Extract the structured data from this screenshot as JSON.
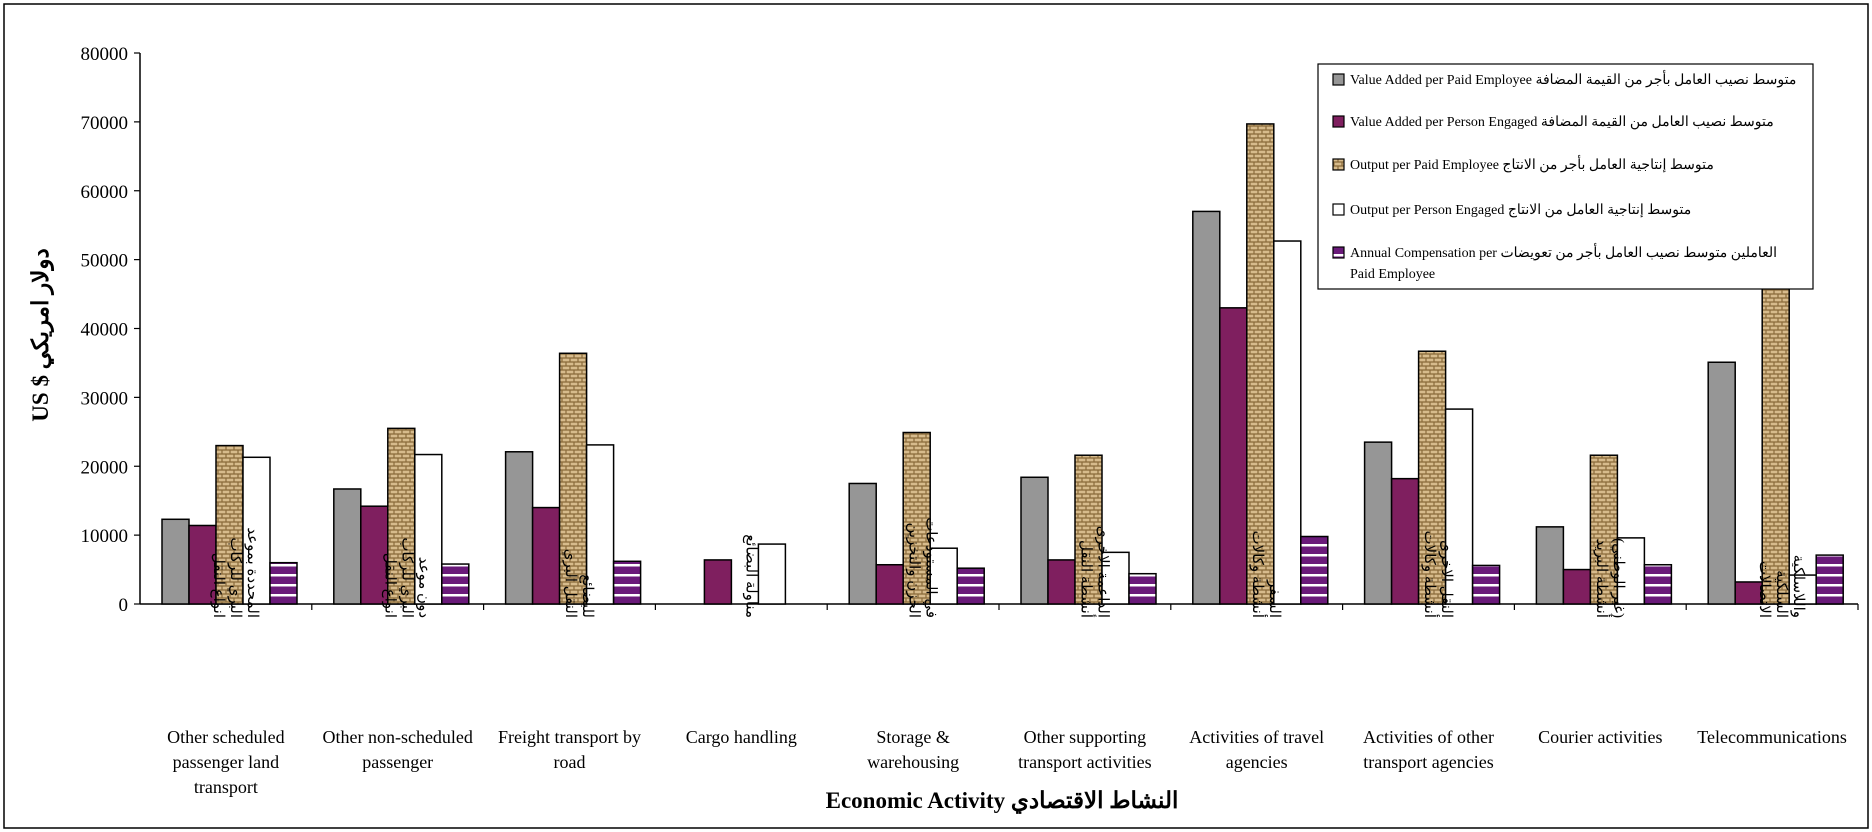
{
  "chart_data": {
    "type": "bar",
    "title": "",
    "xlabel": "Economic Activity النشاط الاقتصادي",
    "ylabel": "US $ دولار امريكي",
    "ylim": [
      0,
      80000
    ],
    "y_ticks": [
      0,
      10000,
      20000,
      30000,
      40000,
      50000,
      60000,
      70000,
      80000
    ],
    "grid": false,
    "legend_position": "top-right",
    "categories": [
      {
        "en": [
          "Other scheduled",
          "passenger land",
          "transport"
        ],
        "ar": [
          "انواع النقل",
          "البري للركاب",
          "المحددة بموعد"
        ]
      },
      {
        "en": [
          "Other non-scheduled",
          "passenger"
        ],
        "ar": [
          "انواع النقل",
          "البري للركاب",
          "دون موعد"
        ]
      },
      {
        "en": [
          "Freight transport by",
          "road"
        ],
        "ar": [
          "النقل البري",
          "للبضائع"
        ]
      },
      {
        "en": [
          "Cargo handling"
        ],
        "ar": [
          "مناولة البضائع"
        ]
      },
      {
        "en": [
          "Storage &",
          "warehousing"
        ],
        "ar": [
          "الخزن والتخزين",
          "في المستودعات"
        ]
      },
      {
        "en": [
          "Other supporting",
          "transport activities"
        ],
        "ar": [
          "أنشطة النقل",
          "الداعمة الاخرى"
        ]
      },
      {
        "en": [
          "Activities of travel",
          "agencies"
        ],
        "ar": [
          "أنشطة وكالات",
          "السفر"
        ]
      },
      {
        "en": [
          "Activities of other",
          "transport agencies"
        ],
        "ar": [
          "أنشطة وكالات",
          "النقل الاخرى"
        ]
      },
      {
        "en": [
          "Courier activities"
        ],
        "ar": [
          "أنشطة البريد",
          "(غير الوطني)"
        ]
      },
      {
        "en": [
          "Telecommunications"
        ],
        "ar": [
          "الاتصالات",
          "السلكية",
          "واللاسلكية"
        ]
      }
    ],
    "series": [
      {
        "name": "Value Added per Paid  Employee  متوسط نصيب العامل  بأجر من القيمة  المضافة",
        "name_lines": [
          "Value Added per Paid  Employee  متوسط نصيب العامل  بأجر من القيمة  المضافة"
        ],
        "color": "#969696",
        "pattern": "solid",
        "values": [
          12300,
          16700,
          22100,
          0,
          17500,
          18400,
          57000,
          23500,
          11200,
          35100
        ]
      },
      {
        "name": "Value Added per Person Engaged متوسط نصيب العامل من القيمة المضافة",
        "name_lines": [
          "Value Added per Person Engaged متوسط نصيب العامل من القيمة المضافة"
        ],
        "color": "#7f1f5f",
        "pattern": "solid",
        "values": [
          11400,
          14200,
          14000,
          6400,
          5700,
          6400,
          43000,
          18200,
          5000,
          3200
        ]
      },
      {
        "name": "Output per Paid Employee  متوسط إنتاجية العامل  بأجر من الانتاج",
        "name_lines": [
          "Output per Paid Employee  متوسط إنتاجية العامل  بأجر من الانتاج"
        ],
        "color": "#c8a878",
        "pattern": "weave",
        "values": [
          23000,
          25500,
          36400,
          0,
          24900,
          21600,
          69700,
          36700,
          21600,
          50000
        ]
      },
      {
        "name": "Output per Person Engaged    متوسط إنتاجية العامل  من الانتاج",
        "name_lines": [
          "Output per Person Engaged    متوسط إنتاجية العامل  من الانتاج"
        ],
        "color": "#ffffff",
        "pattern": "solid",
        "values": [
          21300,
          21700,
          23100,
          8700,
          8100,
          7500,
          52700,
          28300,
          9600,
          4200
        ]
      },
      {
        "name": "Annual  Compensation per  العاملين  متوسط نصيب العامل بأجر من تعويضات Paid Employee",
        "name_lines": [
          "Annual  Compensation per  العاملين  متوسط نصيب العامل بأجر من تعويضات",
          "Paid Employee"
        ],
        "color": "#6a1a7a",
        "pattern": "stripes",
        "values": [
          6000,
          5800,
          6200,
          0,
          5200,
          4400,
          9800,
          5600,
          5700,
          7100
        ]
      }
    ]
  }
}
